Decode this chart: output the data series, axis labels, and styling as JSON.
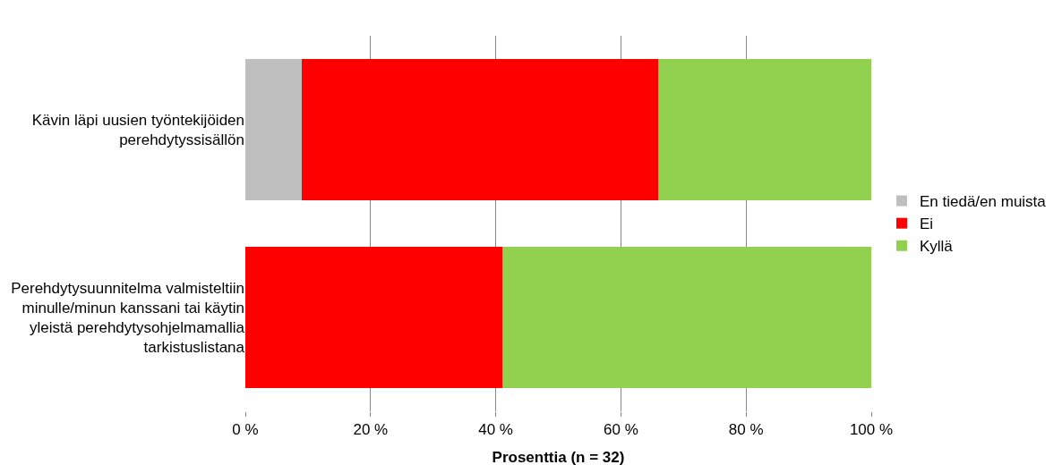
{
  "chart_data": {
    "type": "bar",
    "orientation": "horizontal",
    "stacked": true,
    "xlabel": "Prosenttia (n = 32)",
    "categories": [
      "Kävin läpi uusien työntekijöiden perehdytyssisällön",
      "Perehdytysuunnitelma valmisteltiin minulle/minun kanssani tai käytin yleistä perehdytysohjelmamallia tarkistuslistana"
    ],
    "series": [
      {
        "name": "En tiedä/en muista",
        "color": "#bfbfbf",
        "values": [
          9,
          0
        ]
      },
      {
        "name": "Ei",
        "color": "#ff0000",
        "values": [
          57,
          41
        ]
      },
      {
        "name": "Kyllä",
        "color": "#92d050",
        "values": [
          34,
          59
        ]
      }
    ],
    "xlim": [
      0,
      100
    ],
    "xticks": [
      {
        "value": 0,
        "label": "0 %"
      },
      {
        "value": 20,
        "label": "20 %"
      },
      {
        "value": 40,
        "label": "40 %"
      },
      {
        "value": 60,
        "label": "60 %"
      },
      {
        "value": 80,
        "label": "80 %"
      },
      {
        "value": 100,
        "label": "100 %"
      }
    ],
    "grid": "x",
    "legend": "right"
  }
}
